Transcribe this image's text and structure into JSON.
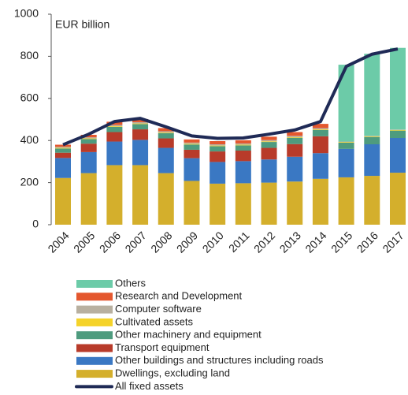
{
  "chart_data": {
    "type": "bar",
    "stacked": true,
    "y_label": "EUR billion",
    "categories": [
      "2004",
      "2005",
      "2006",
      "2007",
      "2008",
      "2009",
      "2010",
      "2011",
      "2012",
      "2013",
      "2014",
      "2015",
      "2016",
      "2017"
    ],
    "ylim": [
      0,
      1000
    ],
    "yticks": [
      0,
      200,
      400,
      600,
      800,
      1000
    ],
    "series": [
      {
        "name": "Dwellings, excluding land",
        "color": "#d4af2c",
        "values": [
          222,
          245,
          283,
          283,
          245,
          208,
          195,
          197,
          200,
          205,
          218,
          225,
          232,
          247
        ]
      },
      {
        "name": "Other buildings and structures including roads",
        "color": "#3a78c3",
        "values": [
          95,
          100,
          112,
          120,
          120,
          108,
          103,
          105,
          110,
          118,
          122,
          135,
          150,
          165
        ]
      },
      {
        "name": "Transport equipment",
        "color": "#b83b2a",
        "values": [
          25,
          40,
          45,
          50,
          45,
          40,
          50,
          50,
          55,
          60,
          80,
          0,
          0,
          0
        ]
      },
      {
        "name": "Other machinery and equipment",
        "color": "#4e9b7e",
        "values": [
          20,
          22,
          25,
          25,
          25,
          25,
          25,
          25,
          28,
          30,
          30,
          30,
          35,
          35
        ]
      },
      {
        "name": "Cultivated assets",
        "color": "#f5d32a",
        "values": [
          3,
          3,
          3,
          3,
          3,
          3,
          3,
          3,
          3,
          3,
          3,
          3,
          3,
          3
        ]
      },
      {
        "name": "Computer software",
        "color": "#b8b0a0",
        "values": [
          5,
          5,
          6,
          6,
          6,
          6,
          6,
          6,
          6,
          6,
          6,
          2,
          2,
          2
        ]
      },
      {
        "name": "Research and Development",
        "color": "#e4572e",
        "values": [
          10,
          12,
          15,
          15,
          15,
          15,
          15,
          15,
          16,
          18,
          20,
          0,
          0,
          0
        ]
      },
      {
        "name": "Others",
        "color": "#6ccba8",
        "values": [
          0,
          0,
          0,
          0,
          0,
          0,
          0,
          0,
          0,
          0,
          0,
          365,
          390,
          388
        ]
      },
      {
        "name": "All fixed assets",
        "color": "#1f2a56",
        "type": "line",
        "values": [
          380,
          430,
          490,
          505,
          465,
          422,
          410,
          412,
          430,
          450,
          490,
          752,
          810,
          835
        ]
      }
    ]
  }
}
